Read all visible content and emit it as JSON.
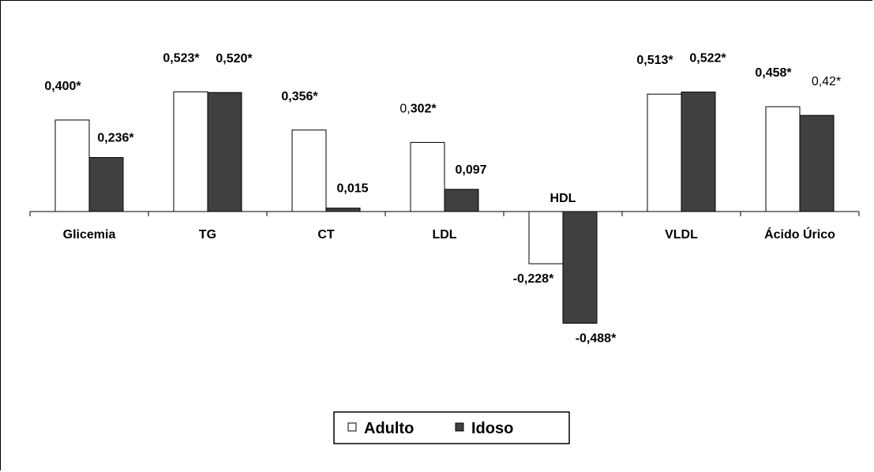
{
  "chart_data": {
    "type": "bar",
    "title": "",
    "xlabel": "",
    "ylabel": "",
    "ylim": [
      -0.6,
      0.6
    ],
    "grid": false,
    "legend_position": "bottom-center",
    "categories": [
      "Glicemia",
      "TG",
      "CT",
      "LDL",
      "HDL",
      "VLDL",
      "Ácido Úrico"
    ],
    "series": [
      {
        "name": "Adulto",
        "color": "#ffffff",
        "values": [
          0.4,
          0.523,
          0.356,
          0.302,
          -0.228,
          0.513,
          0.458
        ],
        "labels": [
          "0,400*",
          "0,523*",
          "0,356*",
          "0,302*",
          "-0,228*",
          "0,513*",
          "0,458*"
        ]
      },
      {
        "name": "Idoso",
        "color": "#404040",
        "values": [
          0.236,
          0.52,
          0.015,
          0.097,
          -0.488,
          0.522,
          0.42
        ],
        "labels": [
          "0,236*",
          "0,520*",
          "0,015",
          "0,097",
          "-0,488*",
          "0,522*",
          "0,42*"
        ]
      }
    ]
  }
}
